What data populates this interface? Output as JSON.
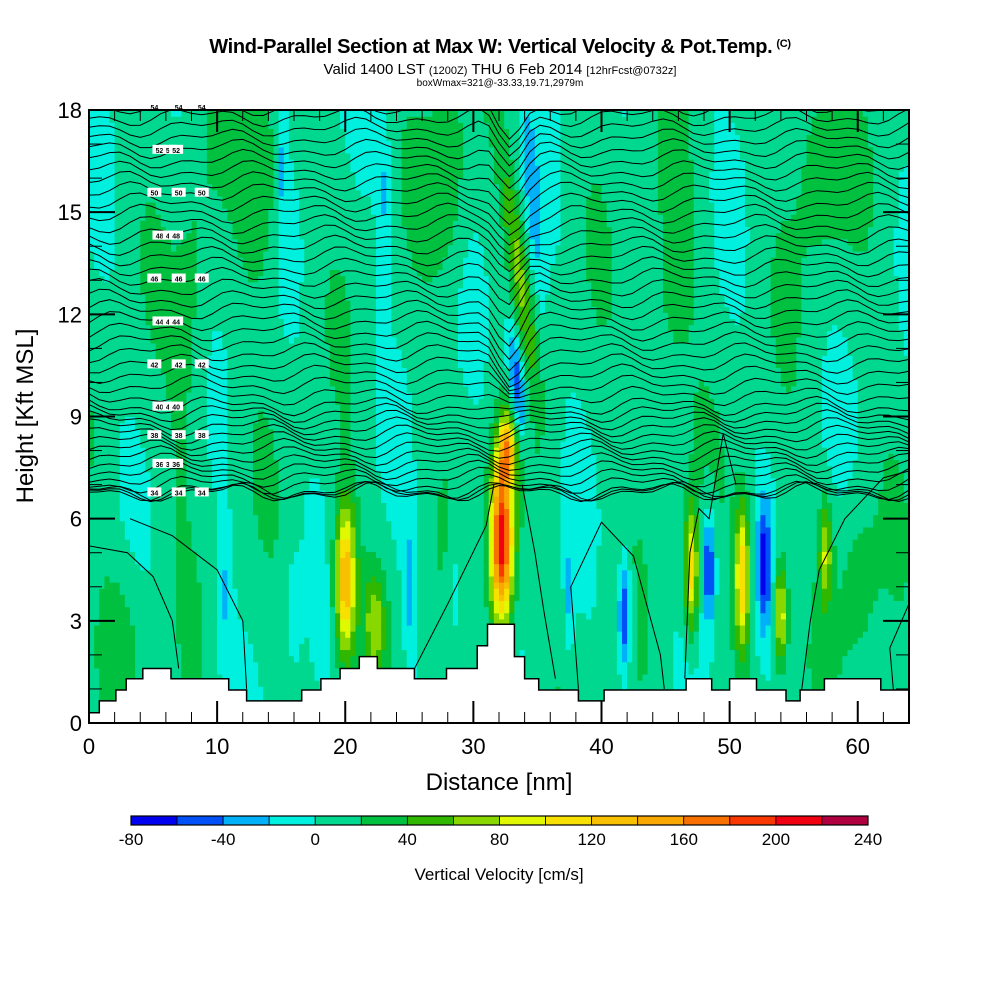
{
  "header": {
    "title": "Wind-Parallel Section at Max W: Vertical Velocity & Pot.Temp.",
    "copyright": "(C)",
    "subtitle_pre": "Valid 1400 LST",
    "subtitle_z": "(1200Z)",
    "subtitle_mid": "THU 6 Feb 2014",
    "subtitle_fcst": "[12hrFcst@0732z]",
    "box_info": "boxWmax=321@-33.33,19.71,2979m"
  },
  "chart_data": {
    "type": "heatmap",
    "title": "Wind-Parallel Section at Max W: Vertical Velocity & Pot.Temp.",
    "xlabel": "Distance [nm]",
    "ylabel": "Height [Kft MSL]",
    "xlim": [
      0,
      64
    ],
    "ylim": [
      0,
      18
    ],
    "x_ticks": [
      "0",
      "10",
      "20",
      "30",
      "40",
      "50",
      "60"
    ],
    "x_tick_values": [
      0,
      10,
      20,
      30,
      40,
      50,
      60
    ],
    "y_ticks": [
      "0",
      "3",
      "6",
      "9",
      "12",
      "15",
      "18"
    ],
    "y_tick_values": [
      0,
      3,
      6,
      9,
      12,
      15,
      18
    ],
    "colorbar": {
      "label": "Vertical Velocity [cm/s]",
      "placement": "bottom",
      "bounds": [
        -80,
        -60,
        -40,
        -20,
        0,
        20,
        40,
        60,
        80,
        100,
        120,
        140,
        160,
        180,
        200,
        220,
        240
      ],
      "tick_labels": [
        "-80",
        "-40",
        "0",
        "40",
        "80",
        "120",
        "160",
        "200",
        "240"
      ],
      "colors": [
        "#0000f0",
        "#0050f8",
        "#00b0f8",
        "#00f0e0",
        "#00d890",
        "#00c040",
        "#30b800",
        "#88d800",
        "#e0f800",
        "#f8e000",
        "#f8c000",
        "#f8a800",
        "#f87000",
        "#f83800",
        "#f00010",
        "#b00040"
      ]
    },
    "pot_temp_contour_labels": [
      "54",
      "52",
      "50",
      "48",
      "46",
      "44",
      "42",
      "40",
      "38",
      "36",
      "34"
    ],
    "pot_temp_levels": [
      34,
      36,
      38,
      40,
      42,
      44,
      46,
      48,
      50,
      52,
      54
    ],
    "terrain": {
      "distance_nm": [
        0,
        0.8,
        0.8,
        2.1,
        2.1,
        2.9,
        2.9,
        4.2,
        4.2,
        6.4,
        6.4,
        10.9,
        10.9,
        12.3,
        12.3,
        16.6,
        16.6,
        18.1,
        18.1,
        19.6,
        19.6,
        21.1,
        21.1,
        22.5,
        22.5,
        25.4,
        25.4,
        27.9,
        27.9,
        30.3,
        30.3,
        31.1,
        31.1,
        33.2,
        33.2,
        34.0,
        34.0,
        35.1,
        35.1,
        38.2,
        38.2,
        40.2,
        40.2,
        46.6,
        46.6,
        48.6,
        48.6,
        50.0,
        50.0,
        52.1,
        52.1,
        54.4,
        54.4,
        55.5,
        55.5,
        57.4,
        57.4,
        61.8,
        61.8,
        64
      ],
      "height_kft": [
        0.3,
        0.3,
        0.65,
        0.65,
        0.97,
        0.97,
        1.3,
        1.3,
        1.6,
        1.6,
        1.3,
        1.3,
        0.97,
        0.97,
        0.65,
        0.65,
        0.97,
        0.97,
        1.3,
        1.3,
        1.6,
        1.6,
        1.95,
        1.95,
        1.6,
        1.6,
        1.3,
        1.3,
        1.6,
        1.6,
        2.27,
        2.27,
        2.9,
        2.9,
        1.95,
        1.95,
        1.3,
        1.3,
        0.97,
        0.97,
        0.65,
        0.65,
        0.97,
        0.97,
        1.3,
        1.3,
        0.97,
        0.97,
        1.3,
        1.3,
        0.97,
        0.97,
        0.65,
        0.65,
        0.97,
        0.97,
        1.3,
        1.3,
        0.97,
        0.97
      ]
    },
    "wmax_cm_s": 321
  }
}
